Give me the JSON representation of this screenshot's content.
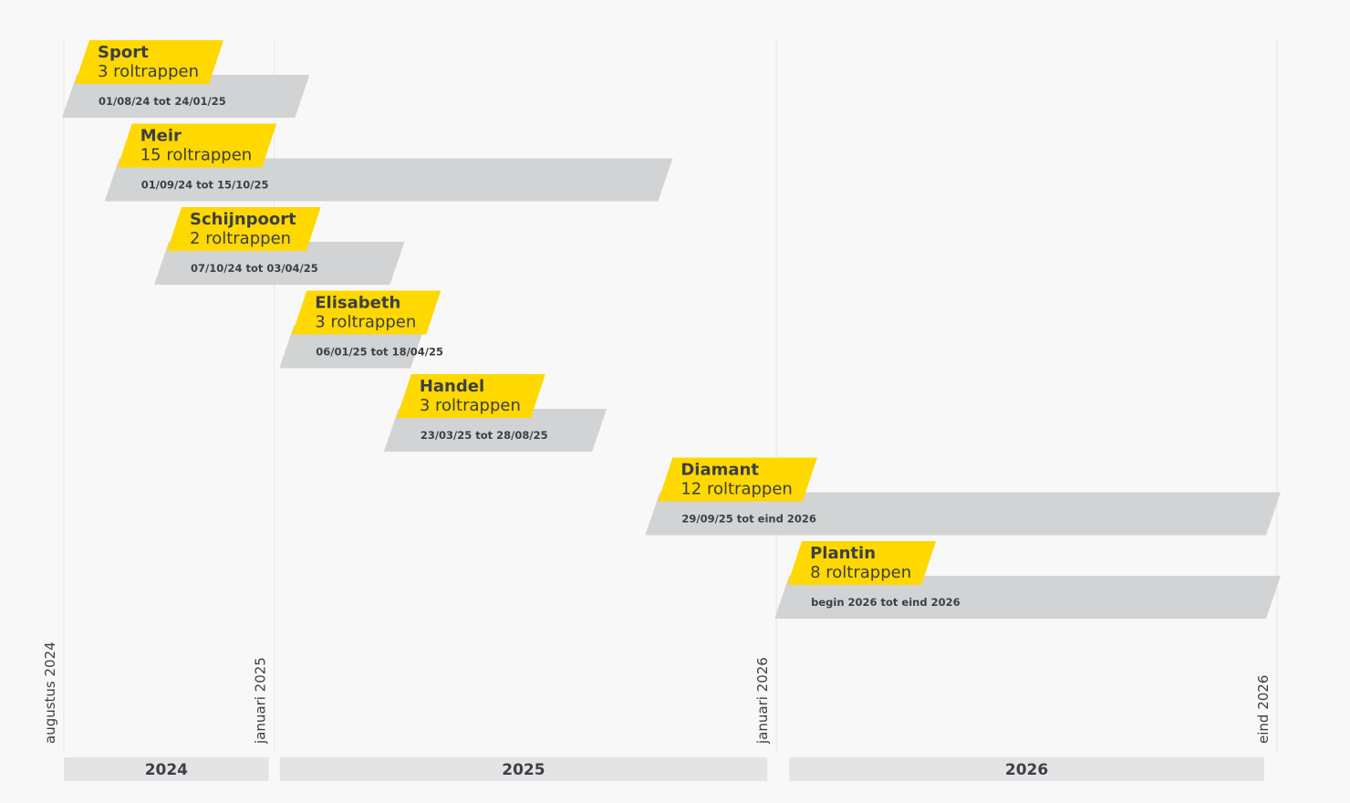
{
  "chart_data": {
    "type": "gantt",
    "colors": {
      "label_fill": "#ffd800",
      "bar_fill": "#d2d3d4",
      "year_band": "#e3e4e5",
      "gridline": "#e6e6e6",
      "text_dark": "#3c3f44"
    },
    "tasks": [
      {
        "name": "Sport",
        "count": "3 roltrappen",
        "period": "01/08/24 tot 24/01/25",
        "start": "2024-08-01",
        "end": "2025-01-24"
      },
      {
        "name": "Meir",
        "count": "15 roltrappen",
        "period": "01/09/24 tot 15/10/25",
        "start": "2024-09-01",
        "end": "2025-10-15"
      },
      {
        "name": "Schijnpoort",
        "count": "2 roltrappen",
        "period": "07/10/24 tot 03/04/25",
        "start": "2024-10-07",
        "end": "2025-04-03"
      },
      {
        "name": "Elisabeth",
        "count": "3 roltrappen",
        "period": "06/01/25 tot 18/04/25",
        "start": "2025-01-06",
        "end": "2025-04-18"
      },
      {
        "name": "Handel",
        "count": "3 roltrappen",
        "period": "23/03/25 tot 28/08/25",
        "start": "2025-03-23",
        "end": "2025-08-28"
      },
      {
        "name": "Diamant",
        "count": "12 roltrappen",
        "period": "29/09/25 tot eind 2026",
        "start": "2025-09-29",
        "end": "2026-12-31"
      },
      {
        "name": "Plantin",
        "count": "8 roltrappen",
        "period": "begin 2026 tot eind 2026",
        "start": "2026-01-01",
        "end": "2026-12-31"
      }
    ],
    "axis_markers": [
      {
        "label": "augustus 2024",
        "date": "2024-08-01"
      },
      {
        "label": "januari 2025",
        "date": "2025-01-01"
      },
      {
        "label": "januari 2026",
        "date": "2026-01-01"
      },
      {
        "label": "eind 2026",
        "date": "2026-12-31"
      }
    ],
    "years": [
      {
        "label": "2024",
        "start": "2024-08-01",
        "end": "2025-01-01"
      },
      {
        "label": "2025",
        "start": "2025-01-01",
        "end": "2026-01-01"
      },
      {
        "label": "2026",
        "start": "2026-01-01",
        "end": "2026-12-31"
      }
    ],
    "xlim": [
      "2024-08-01",
      "2026-12-31"
    ]
  }
}
